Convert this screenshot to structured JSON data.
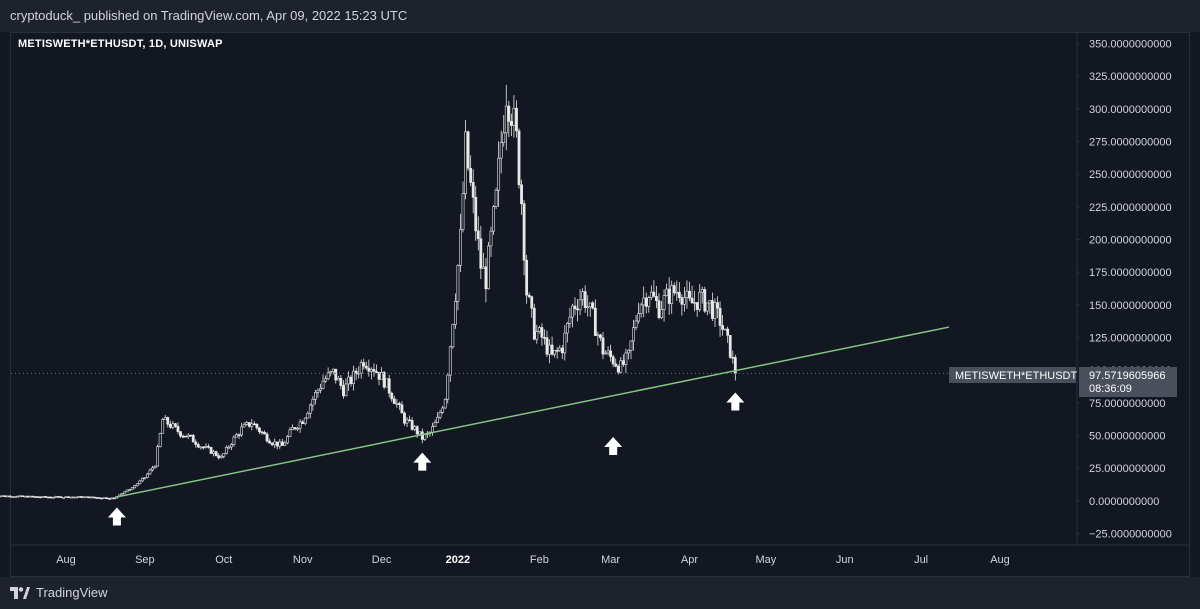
{
  "header": {
    "published_text": "cryptoduck_ published on TradingView.com, Apr 09, 2022 15:23 UTC"
  },
  "legend": {
    "symbol_text": "METISWETH*ETHUSDT, 1D, UNISWAP"
  },
  "price_label": {
    "symbol": "METISWETH*ETHUSDT",
    "price": "97.5719605966",
    "countdown": "08:36:09"
  },
  "footer": {
    "brand": "TradingView"
  },
  "colors": {
    "background": "#131722",
    "candle": "#e8e8e8",
    "trendline": "#81c784",
    "axis_text": "#d1d4dc",
    "label_bg": "#4a4f5c"
  },
  "chart_data": {
    "type": "candlestick",
    "title": "METISWETH*ETHUSDT, 1D, UNISWAP",
    "y_axis_ticks": [
      "350.0000000000",
      "325.0000000000",
      "300.0000000000",
      "275.0000000000",
      "250.0000000000",
      "225.0000000000",
      "200.0000000000",
      "175.0000000000",
      "150.0000000000",
      "125.0000000000",
      "100.0000000000",
      "75.0000000000",
      "50.0000000000",
      "25.0000000000",
      "0.0000000000",
      "−25.0000000000"
    ],
    "y_tick_values": [
      350,
      325,
      300,
      275,
      250,
      225,
      200,
      175,
      150,
      125,
      100,
      75,
      50,
      25,
      0,
      -25
    ],
    "ylim": [
      -33,
      358
    ],
    "x_axis_labels": [
      "Aug",
      "Sep",
      "Oct",
      "Nov",
      "Dec",
      "2022",
      "Feb",
      "Mar",
      "Apr",
      "May",
      "Jun",
      "Jul",
      "Aug"
    ],
    "x_label_bold": [
      false,
      false,
      false,
      false,
      false,
      true,
      false,
      false,
      false,
      false,
      false,
      false,
      false
    ],
    "x_label_days": [
      -1,
      30,
      61,
      92,
      123,
      153,
      185,
      213,
      244,
      274,
      305,
      335,
      366
    ],
    "x_start_date": "2021-07-01",
    "last_price": 97.5719605966,
    "close_series": [
      {
        "day": -30,
        "close": 4
      },
      {
        "day": -10,
        "close": 3
      },
      {
        "day": 5,
        "close": 3
      },
      {
        "day": 18,
        "close": 2
      },
      {
        "day": 20,
        "close": 5
      },
      {
        "day": 25,
        "close": 10
      },
      {
        "day": 30,
        "close": 18
      },
      {
        "day": 34,
        "close": 28
      },
      {
        "day": 37,
        "close": 62
      },
      {
        "day": 40,
        "close": 58
      },
      {
        "day": 44,
        "close": 52
      },
      {
        "day": 48,
        "close": 48
      },
      {
        "day": 52,
        "close": 42
      },
      {
        "day": 56,
        "close": 38
      },
      {
        "day": 60,
        "close": 33
      },
      {
        "day": 64,
        "close": 45
      },
      {
        "day": 68,
        "close": 55
      },
      {
        "day": 72,
        "close": 60
      },
      {
        "day": 76,
        "close": 52
      },
      {
        "day": 80,
        "close": 45
      },
      {
        "day": 84,
        "close": 42
      },
      {
        "day": 88,
        "close": 55
      },
      {
        "day": 92,
        "close": 62
      },
      {
        "day": 96,
        "close": 78
      },
      {
        "day": 100,
        "close": 92
      },
      {
        "day": 104,
        "close": 98
      },
      {
        "day": 108,
        "close": 85
      },
      {
        "day": 112,
        "close": 95
      },
      {
        "day": 116,
        "close": 108
      },
      {
        "day": 120,
        "close": 102
      },
      {
        "day": 124,
        "close": 92
      },
      {
        "day": 128,
        "close": 78
      },
      {
        "day": 132,
        "close": 62
      },
      {
        "day": 136,
        "close": 55
      },
      {
        "day": 139,
        "close": 48
      },
      {
        "day": 142,
        "close": 52
      },
      {
        "day": 145,
        "close": 62
      },
      {
        "day": 148,
        "close": 80
      },
      {
        "day": 150,
        "close": 120
      },
      {
        "day": 152,
        "close": 160
      },
      {
        "day": 154,
        "close": 200
      },
      {
        "day": 156,
        "close": 270
      },
      {
        "day": 158,
        "close": 240
      },
      {
        "day": 160,
        "close": 210
      },
      {
        "day": 162,
        "close": 180
      },
      {
        "day": 164,
        "close": 170
      },
      {
        "day": 166,
        "close": 200
      },
      {
        "day": 168,
        "close": 230
      },
      {
        "day": 170,
        "close": 275
      },
      {
        "day": 172,
        "close": 315
      },
      {
        "day": 174,
        "close": 300
      },
      {
        "day": 176,
        "close": 275
      },
      {
        "day": 178,
        "close": 230
      },
      {
        "day": 180,
        "close": 160
      },
      {
        "day": 183,
        "close": 130
      },
      {
        "day": 186,
        "close": 125
      },
      {
        "day": 190,
        "close": 110
      },
      {
        "day": 194,
        "close": 118
      },
      {
        "day": 198,
        "close": 148
      },
      {
        "day": 202,
        "close": 158
      },
      {
        "day": 206,
        "close": 140
      },
      {
        "day": 210,
        "close": 115
      },
      {
        "day": 214,
        "close": 108
      },
      {
        "day": 217,
        "close": 102
      },
      {
        "day": 220,
        "close": 110
      },
      {
        "day": 224,
        "close": 150
      },
      {
        "day": 228,
        "close": 160
      },
      {
        "day": 232,
        "close": 148
      },
      {
        "day": 236,
        "close": 158
      },
      {
        "day": 240,
        "close": 162
      },
      {
        "day": 244,
        "close": 150
      },
      {
        "day": 248,
        "close": 155
      },
      {
        "day": 252,
        "close": 150
      },
      {
        "day": 256,
        "close": 138
      },
      {
        "day": 260,
        "close": 115
      },
      {
        "day": 262,
        "close": 98
      }
    ],
    "trendline": {
      "from": {
        "day": 19,
        "value": 3
      },
      "to": {
        "day": 346,
        "value": 133
      }
    },
    "markers": [
      {
        "day": 19,
        "value": -12,
        "icon": "up-arrow-icon"
      },
      {
        "day": 139,
        "value": 30,
        "icon": "up-arrow-icon"
      },
      {
        "day": 214,
        "value": 42,
        "icon": "up-arrow-icon"
      },
      {
        "day": 262,
        "value": 76,
        "icon": "up-arrow-icon"
      }
    ]
  }
}
